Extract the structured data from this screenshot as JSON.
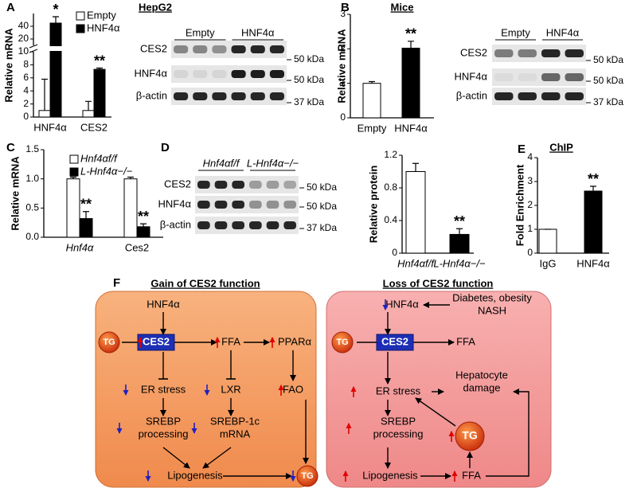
{
  "panel_labels": [
    "A",
    "B",
    "C",
    "D",
    "E",
    "F"
  ],
  "chart_data": [
    {
      "type": "bar",
      "title": "HepG2",
      "ylabel": "Relative mRNA",
      "categories": [
        "HNF4α",
        "CES2"
      ],
      "series": [
        {
          "name": "Empty",
          "color": "#ffffff",
          "values": [
            1,
            1
          ],
          "errors": [
            4.8,
            1.4
          ]
        },
        {
          "name": "HNF4α",
          "color": "#000000",
          "values": [
            45,
            7.3
          ],
          "errors": [
            10,
            0.2
          ]
        }
      ],
      "ylim": [
        0,
        10
      ],
      "yticks": [
        0,
        2,
        4,
        6,
        8,
        10
      ],
      "y_break": {
        "ylim": [
          10,
          60
        ],
        "yticks": [
          20,
          40
        ]
      },
      "annotations": [
        "*",
        "**"
      ],
      "legend": "top-right"
    },
    {
      "type": "bar",
      "title": "Mice",
      "ylabel": "Relative mRNA",
      "categories": [
        "Empty",
        "HNF4α"
      ],
      "values": [
        1,
        2.02
      ],
      "errors": [
        0.05,
        0.2
      ],
      "colors": [
        "#ffffff",
        "#000000"
      ],
      "ylim": [
        0,
        3
      ],
      "yticks": [
        0,
        1,
        2,
        3
      ],
      "annotations": [
        null,
        "**"
      ]
    },
    {
      "type": "bar",
      "ylabel": "Relative mRNA",
      "categories": [
        "Hnf4α",
        "Ces2"
      ],
      "series": [
        {
          "name": "Hnf4αf/f",
          "color": "#ffffff",
          "values": [
            1,
            1
          ],
          "errors": [
            0.03,
            0.03
          ]
        },
        {
          "name": "L-Hnf4α−/−",
          "color": "#000000",
          "values": [
            0.32,
            0.18
          ],
          "errors": [
            0.12,
            0.05
          ]
        }
      ],
      "ylim": [
        0,
        1.5
      ],
      "yticks": [
        {
          "value": 0,
          "label": "0.0"
        },
        0.5,
        {
          "value": 1,
          "label": "1.0"
        },
        1.5
      ],
      "annotations": [
        "**",
        "**"
      ],
      "legend": "top-left"
    },
    {
      "type": "bar",
      "ylabel": "Relative protein",
      "categories": [
        "Hnf4αf/f",
        "L-Hnf4α−/−"
      ],
      "values": [
        1,
        0.23
      ],
      "errors": [
        0.1,
        0.07
      ],
      "colors": [
        "#ffffff",
        "#000000"
      ],
      "ylim": [
        0,
        1.2
      ],
      "yticks": [
        0,
        0.4,
        0.8,
        1.2
      ],
      "annotations": [
        null,
        "**"
      ]
    },
    {
      "type": "bar",
      "title": "ChIP",
      "ylabel": "Fold Enrichment",
      "categories": [
        "IgG",
        "HNF4α"
      ],
      "values": [
        1,
        2.6
      ],
      "errors": [
        0,
        0.2
      ],
      "colors": [
        "#ffffff",
        "#000000"
      ],
      "ylim": [
        0,
        4
      ],
      "yticks": [
        0,
        1,
        2,
        3,
        4
      ],
      "annotations": [
        null,
        "**"
      ]
    }
  ],
  "blots": [
    {
      "groups": [
        "Empty",
        "HNF4α"
      ],
      "rows": [
        "CES2",
        "HNF4α",
        "β-actin"
      ],
      "markers": [
        "50 kDa",
        "50 kDa",
        "37 kDa"
      ]
    },
    {
      "groups": [
        "Empty",
        "HNF4α"
      ],
      "rows": [
        "CES2",
        "HNF4α",
        "β-actin"
      ],
      "markers": [
        "50 kDa",
        "50 kDa",
        "37 kDa"
      ]
    },
    {
      "groups": [
        "Hnf4αf/f",
        "L-Hnf4α−/−"
      ],
      "rows": [
        "CES2",
        "HNF4α",
        "β-actin"
      ],
      "markers": [
        "50 kDa",
        "50 kDa",
        "37 kDa"
      ]
    }
  ],
  "diagram": {
    "panels": [
      {
        "title": "Gain of CES2 function",
        "nodes": [
          "HNF4α",
          "TG",
          "CES2",
          "FFA",
          "PPARα",
          "ER stress",
          "LXR",
          "FAO",
          [
            "SREBP",
            "processing"
          ],
          [
            "SREBP-1c",
            "mRNA"
          ],
          "Lipogenesis",
          "TG"
        ]
      },
      {
        "title": "Loss of CES2 function",
        "nodes": [
          "HNF4α",
          [
            "Diabetes, obesity",
            "NASH"
          ],
          "TG",
          "CES2",
          "FFA",
          "ER stress",
          [
            "Hepatocyte",
            "damage"
          ],
          [
            "SREBP",
            "processing"
          ],
          "TG",
          "Lipogenesis",
          "FFA"
        ]
      }
    ]
  }
}
